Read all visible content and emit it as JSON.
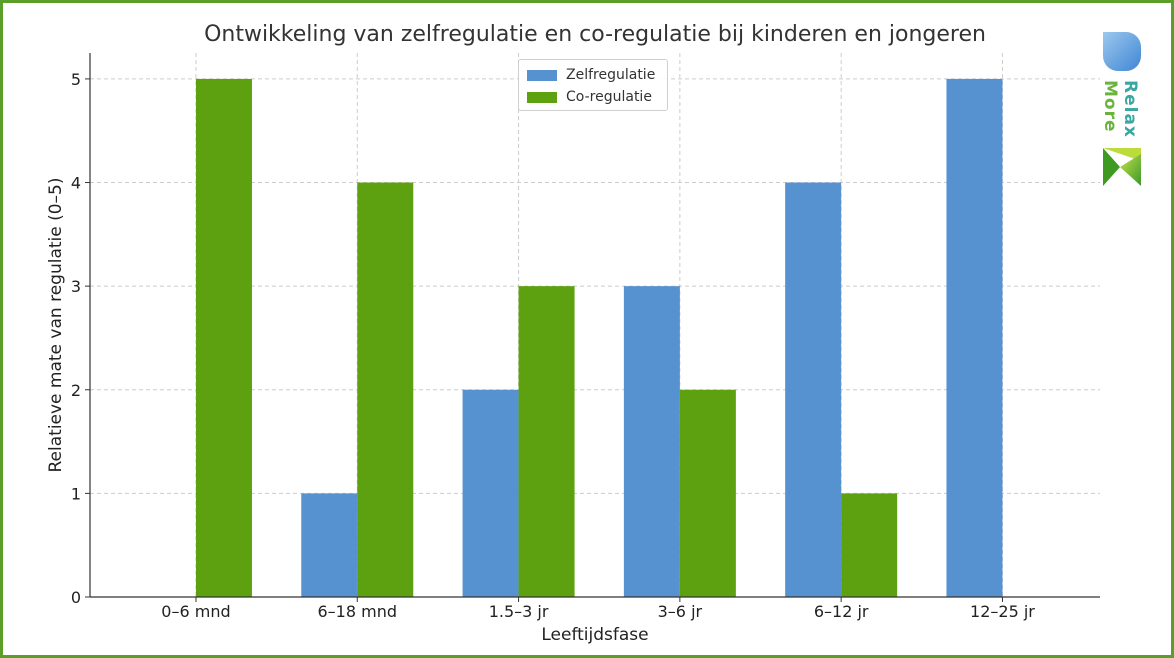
{
  "chart_data": {
    "type": "bar",
    "title": "Ontwikkeling van zelfregulatie en co-regulatie bij kinderen en jongeren",
    "xlabel": "Leeftijdsfase",
    "ylabel": "Relatieve mate van regulatie (0–5)",
    "categories": [
      "0–6 mnd",
      "6–18 mnd",
      "1.5–3 jr",
      "3–6 jr",
      "6–12 jr",
      "12–25 jr"
    ],
    "series": [
      {
        "name": "Zelfregulatie",
        "values": [
          0,
          1,
          2,
          3,
          4,
          5
        ],
        "color": "#5691d0"
      },
      {
        "name": "Co-regulatie",
        "values": [
          5,
          4,
          3,
          2,
          1,
          0
        ],
        "color": "#5ea110"
      }
    ],
    "ylim": [
      0,
      5.25
    ],
    "yticks": [
      "0",
      "1",
      "2",
      "3",
      "4",
      "5"
    ],
    "grid": true,
    "legend_position": "top-center"
  },
  "logo": {
    "text_line1": "Relax",
    "text_line2": "More",
    "colors": {
      "blue": "#4a90d9",
      "green": "#6ab43e",
      "teal": "#3aa7a0"
    }
  }
}
